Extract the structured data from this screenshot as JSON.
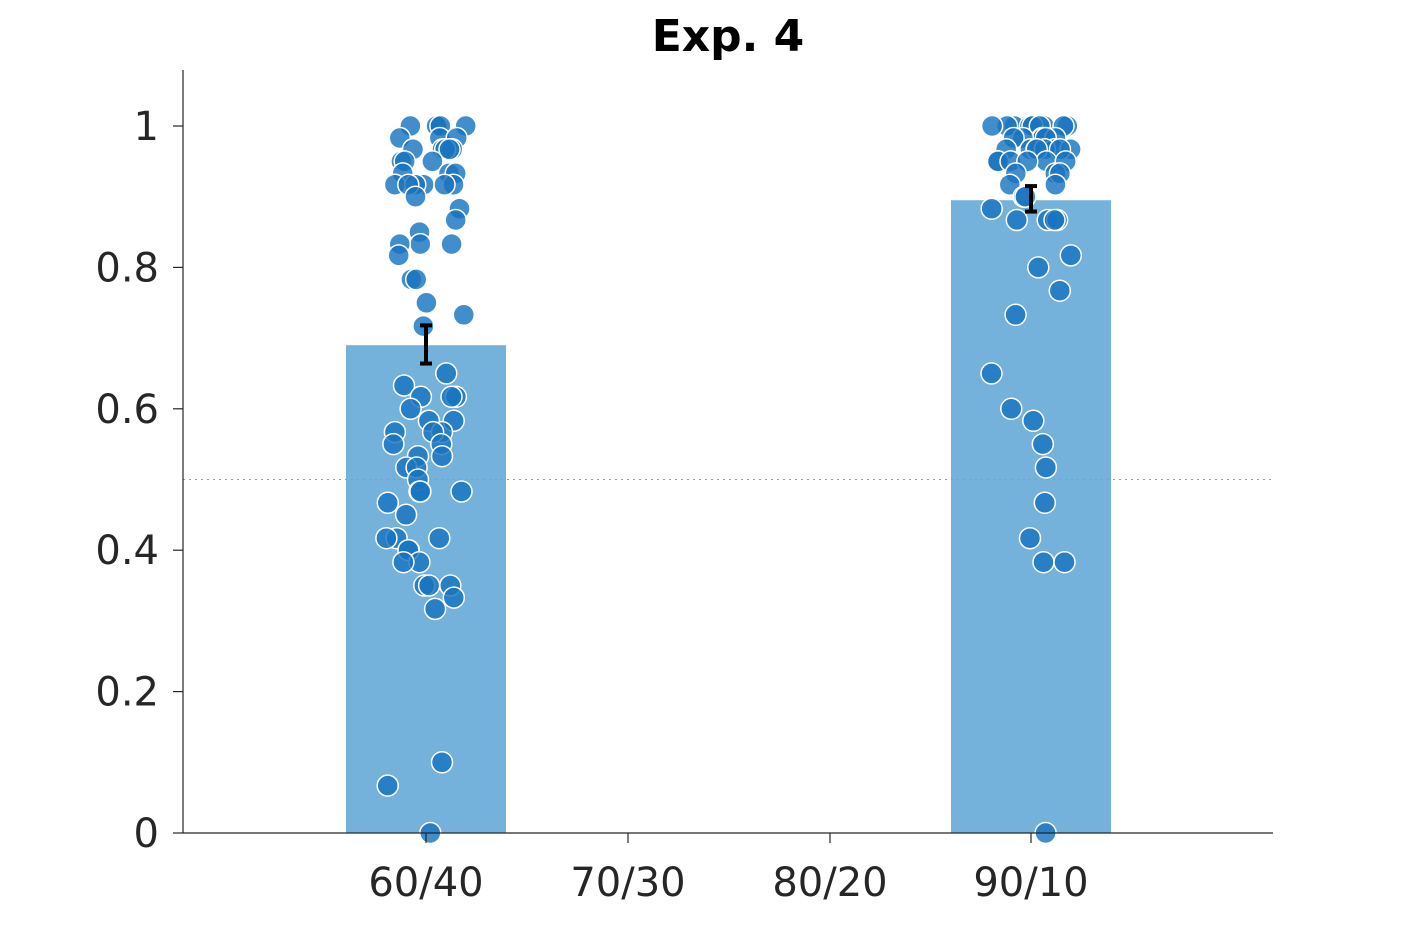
{
  "chart_data": {
    "type": "bar",
    "title": "Exp. 4",
    "xlabel": "",
    "ylabel": "",
    "categories": [
      "60/40",
      "70/30",
      "80/20",
      "90/10"
    ],
    "values": [
      0.69,
      null,
      null,
      0.895
    ],
    "error_bars": [
      {
        "category": "60/40",
        "low": 0.664,
        "high": 0.718
      },
      {
        "category": "90/10",
        "low": 0.879,
        "high": 0.915
      }
    ],
    "ylim": [
      0,
      1.08
    ],
    "yticks": [
      0,
      0.2,
      0.4,
      0.6,
      0.8,
      1
    ],
    "ytick_labels": [
      "0",
      "0.2",
      "0.4",
      "0.6",
      "0.8",
      "1"
    ],
    "reference_line": 0.5,
    "grid": false,
    "legend": "none",
    "colors": {
      "bar": "#74b2db",
      "points": "#1874c0",
      "error": "#000000",
      "reference": "#999999"
    },
    "points": [
      {
        "category": "60/40",
        "values": [
          1,
          1,
          1,
          1,
          1,
          0.983,
          0.983,
          0.983,
          0.967,
          0.967,
          0.967,
          0.967,
          0.967,
          0.95,
          0.95,
          0.95,
          0.933,
          0.933,
          0.933,
          0.917,
          0.917,
          0.917,
          0.917,
          0.917,
          0.917,
          0.9,
          0.883,
          0.867,
          0.85,
          0.833,
          0.833,
          0.833,
          0.817,
          0.783,
          0.783,
          0.75,
          0.733,
          0.717,
          0.65,
          0.633,
          0.617,
          0.617,
          0.617,
          0.6,
          0.583,
          0.583,
          0.567,
          0.567,
          0.567,
          0.55,
          0.55,
          0.533,
          0.533,
          0.517,
          0.517,
          0.5,
          0.483,
          0.483,
          0.483,
          0.467,
          0.45,
          0.417,
          0.417,
          0.417,
          0.4,
          0.4,
          0.383,
          0.383,
          0.35,
          0.35,
          0.35,
          0.333,
          0.317,
          0.1,
          0.067,
          0
        ]
      },
      {
        "category": "90/10",
        "values": [
          1,
          1,
          1,
          1,
          1,
          1,
          1,
          1,
          1,
          1,
          1,
          0.983,
          0.983,
          0.983,
          0.983,
          0.983,
          0.983,
          0.967,
          0.967,
          0.967,
          0.967,
          0.967,
          0.967,
          0.967,
          0.967,
          0.95,
          0.95,
          0.95,
          0.95,
          0.95,
          0.95,
          0.933,
          0.933,
          0.933,
          0.917,
          0.917,
          0.9,
          0.9,
          0.883,
          0.867,
          0.867,
          0.867,
          0.867,
          0.817,
          0.8,
          0.767,
          0.733,
          0.65,
          0.6,
          0.583,
          0.55,
          0.517,
          0.467,
          0.417,
          0.383,
          0.383,
          0
        ]
      }
    ]
  }
}
